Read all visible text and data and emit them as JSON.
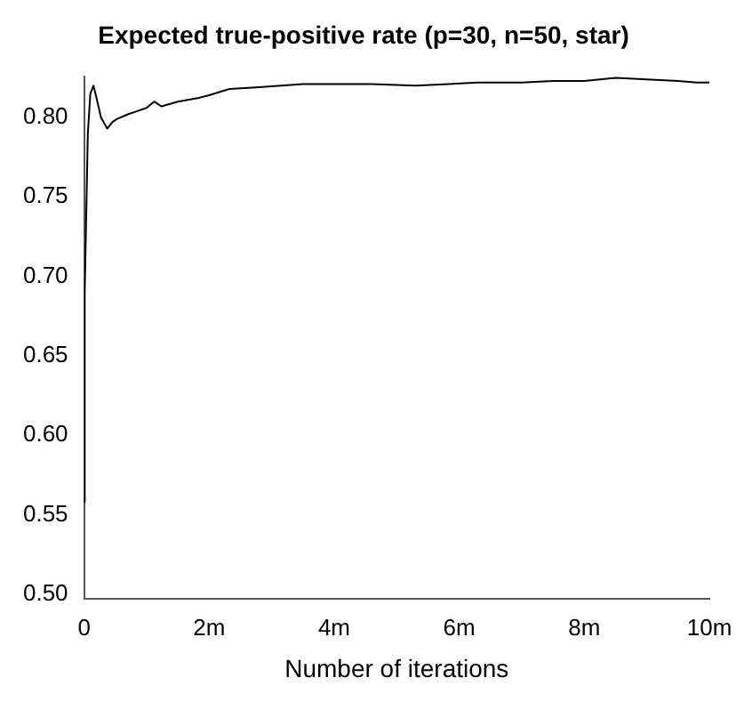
{
  "chart_data": {
    "type": "line",
    "title": "Expected true-positive rate (p=30, n=50, star)",
    "xlabel": "Number of iterations",
    "series": [
      {
        "color": "#000000",
        "x": [
          0,
          0.01,
          0.03,
          0.06,
          0.1,
          0.15,
          0.2,
          0.27,
          0.37,
          0.45,
          0.52,
          0.7,
          0.85,
          1.0,
          1.12,
          1.24,
          1.5,
          1.8,
          2.0,
          2.33,
          2.8,
          3.5,
          4.3,
          4.6,
          5.3,
          6.3,
          7.0,
          7.5,
          8.0,
          8.5,
          9.0,
          9.5,
          9.8,
          10.0
        ],
        "values": [
          0.558,
          0.69,
          0.73,
          0.79,
          0.815,
          0.82,
          0.812,
          0.8,
          0.793,
          0.797,
          0.799,
          0.802,
          0.804,
          0.806,
          0.81,
          0.807,
          0.81,
          0.812,
          0.814,
          0.818,
          0.819,
          0.821,
          0.821,
          0.821,
          0.82,
          0.822,
          0.822,
          0.823,
          0.823,
          0.825,
          0.824,
          0.823,
          0.822,
          0.822
        ]
      }
    ],
    "xlim": [
      0,
      10
    ],
    "xticks": [
      0,
      {
        "value": 2,
        "label": "2m"
      },
      {
        "value": 4,
        "label": "4m"
      },
      {
        "value": 6,
        "label": "6m"
      },
      {
        "value": 8,
        "label": "8m"
      },
      {
        "value": 10,
        "label": "10m"
      }
    ],
    "ylim": [
      0.497,
      0.826
    ],
    "yticks": [
      {
        "value": 0.5,
        "label": "0.50"
      },
      {
        "value": 0.55,
        "label": "0.55"
      },
      {
        "value": 0.6,
        "label": "0.60"
      },
      {
        "value": 0.65,
        "label": "0.65"
      },
      {
        "value": 0.7,
        "label": "0.70"
      },
      {
        "value": 0.75,
        "label": "0.75"
      },
      {
        "value": 0.8,
        "label": "0.80"
      }
    ],
    "grid": false,
    "legend": false,
    "marker": "none",
    "line_style": "solid"
  }
}
